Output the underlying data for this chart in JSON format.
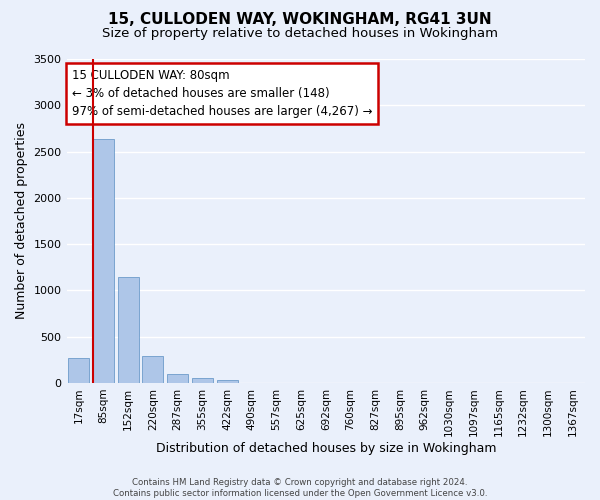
{
  "title_line1": "15, CULLODEN WAY, WOKINGHAM, RG41 3UN",
  "title_line2": "Size of property relative to detached houses in Wokingham",
  "xlabel": "Distribution of detached houses by size in Wokingham",
  "ylabel": "Number of detached properties",
  "footnote": "Contains HM Land Registry data © Crown copyright and database right 2024.\nContains public sector information licensed under the Open Government Licence v3.0.",
  "annotation_title": "15 CULLODEN WAY: 80sqm",
  "annotation_line2": "← 3% of detached houses are smaller (148)",
  "annotation_line3": "97% of semi-detached houses are larger (4,267) →",
  "bar_labels": [
    "17sqm",
    "85sqm",
    "152sqm",
    "220sqm",
    "287sqm",
    "355sqm",
    "422sqm",
    "490sqm",
    "557sqm",
    "625sqm",
    "692sqm",
    "760sqm",
    "827sqm",
    "895sqm",
    "962sqm",
    "1030sqm",
    "1097sqm",
    "1165sqm",
    "1232sqm",
    "1300sqm",
    "1367sqm"
  ],
  "bar_values": [
    270,
    2630,
    1140,
    290,
    95,
    55,
    35,
    0,
    0,
    0,
    0,
    0,
    0,
    0,
    0,
    0,
    0,
    0,
    0,
    0,
    0
  ],
  "bar_color": "#aec6e8",
  "bar_edge_color": "#5a8fc2",
  "marker_color": "#cc0000",
  "ylim": [
    0,
    3500
  ],
  "yticks": [
    0,
    500,
    1000,
    1500,
    2000,
    2500,
    3000,
    3500
  ],
  "bg_color": "#eaf0fb",
  "grid_color": "#ffffff",
  "annotation_box_color": "#cc0000",
  "title_fontsize": 11,
  "subtitle_fontsize": 9.5,
  "axis_label_fontsize": 9,
  "tick_fontsize": 7.5,
  "annotation_fontsize": 8.5
}
